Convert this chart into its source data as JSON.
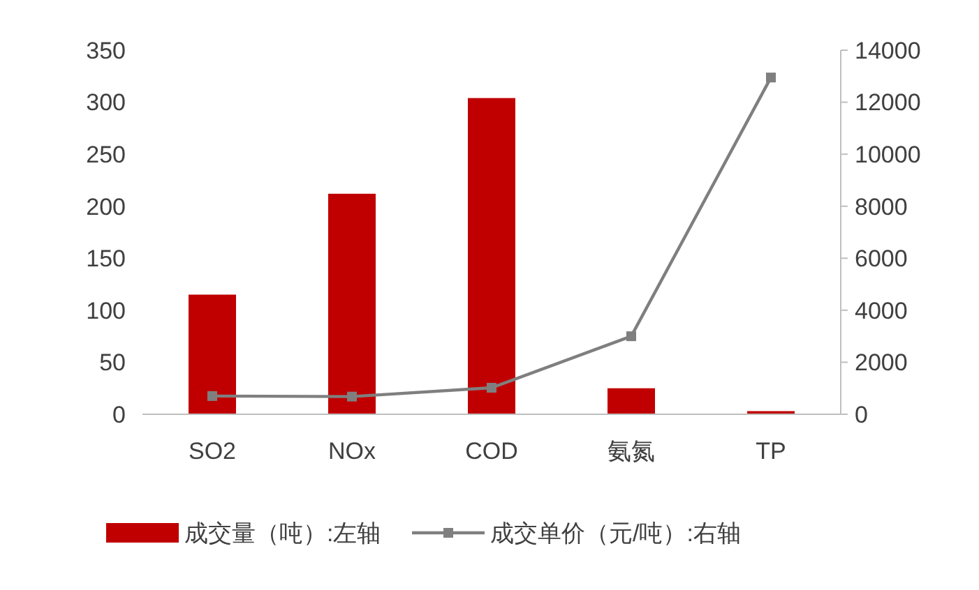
{
  "chart_data": {
    "type": "bar",
    "categories": [
      "SO2",
      "NOx",
      "COD",
      "氨氮",
      "TP"
    ],
    "series": [
      {
        "name": "成交量（吨）:左轴",
        "color": "#c00000",
        "values": [
          115,
          212,
          304,
          25,
          3
        ]
      },
      {
        "name": "成交单价（元/吨）:右轴",
        "type": "line",
        "axis": "y2",
        "color": "#7f7f7f",
        "values": [
          700,
          680,
          1020,
          3000,
          12950
        ]
      }
    ],
    "ylim": [
      0,
      350
    ],
    "yticks": [
      0,
      50,
      100,
      150,
      200,
      250,
      300,
      350
    ],
    "y2lim": [
      0,
      14000
    ],
    "y2ticks": [
      0,
      2000,
      4000,
      6000,
      8000,
      10000,
      12000,
      14000
    ],
    "marker": "square",
    "legend": "bottom",
    "grid": false
  }
}
